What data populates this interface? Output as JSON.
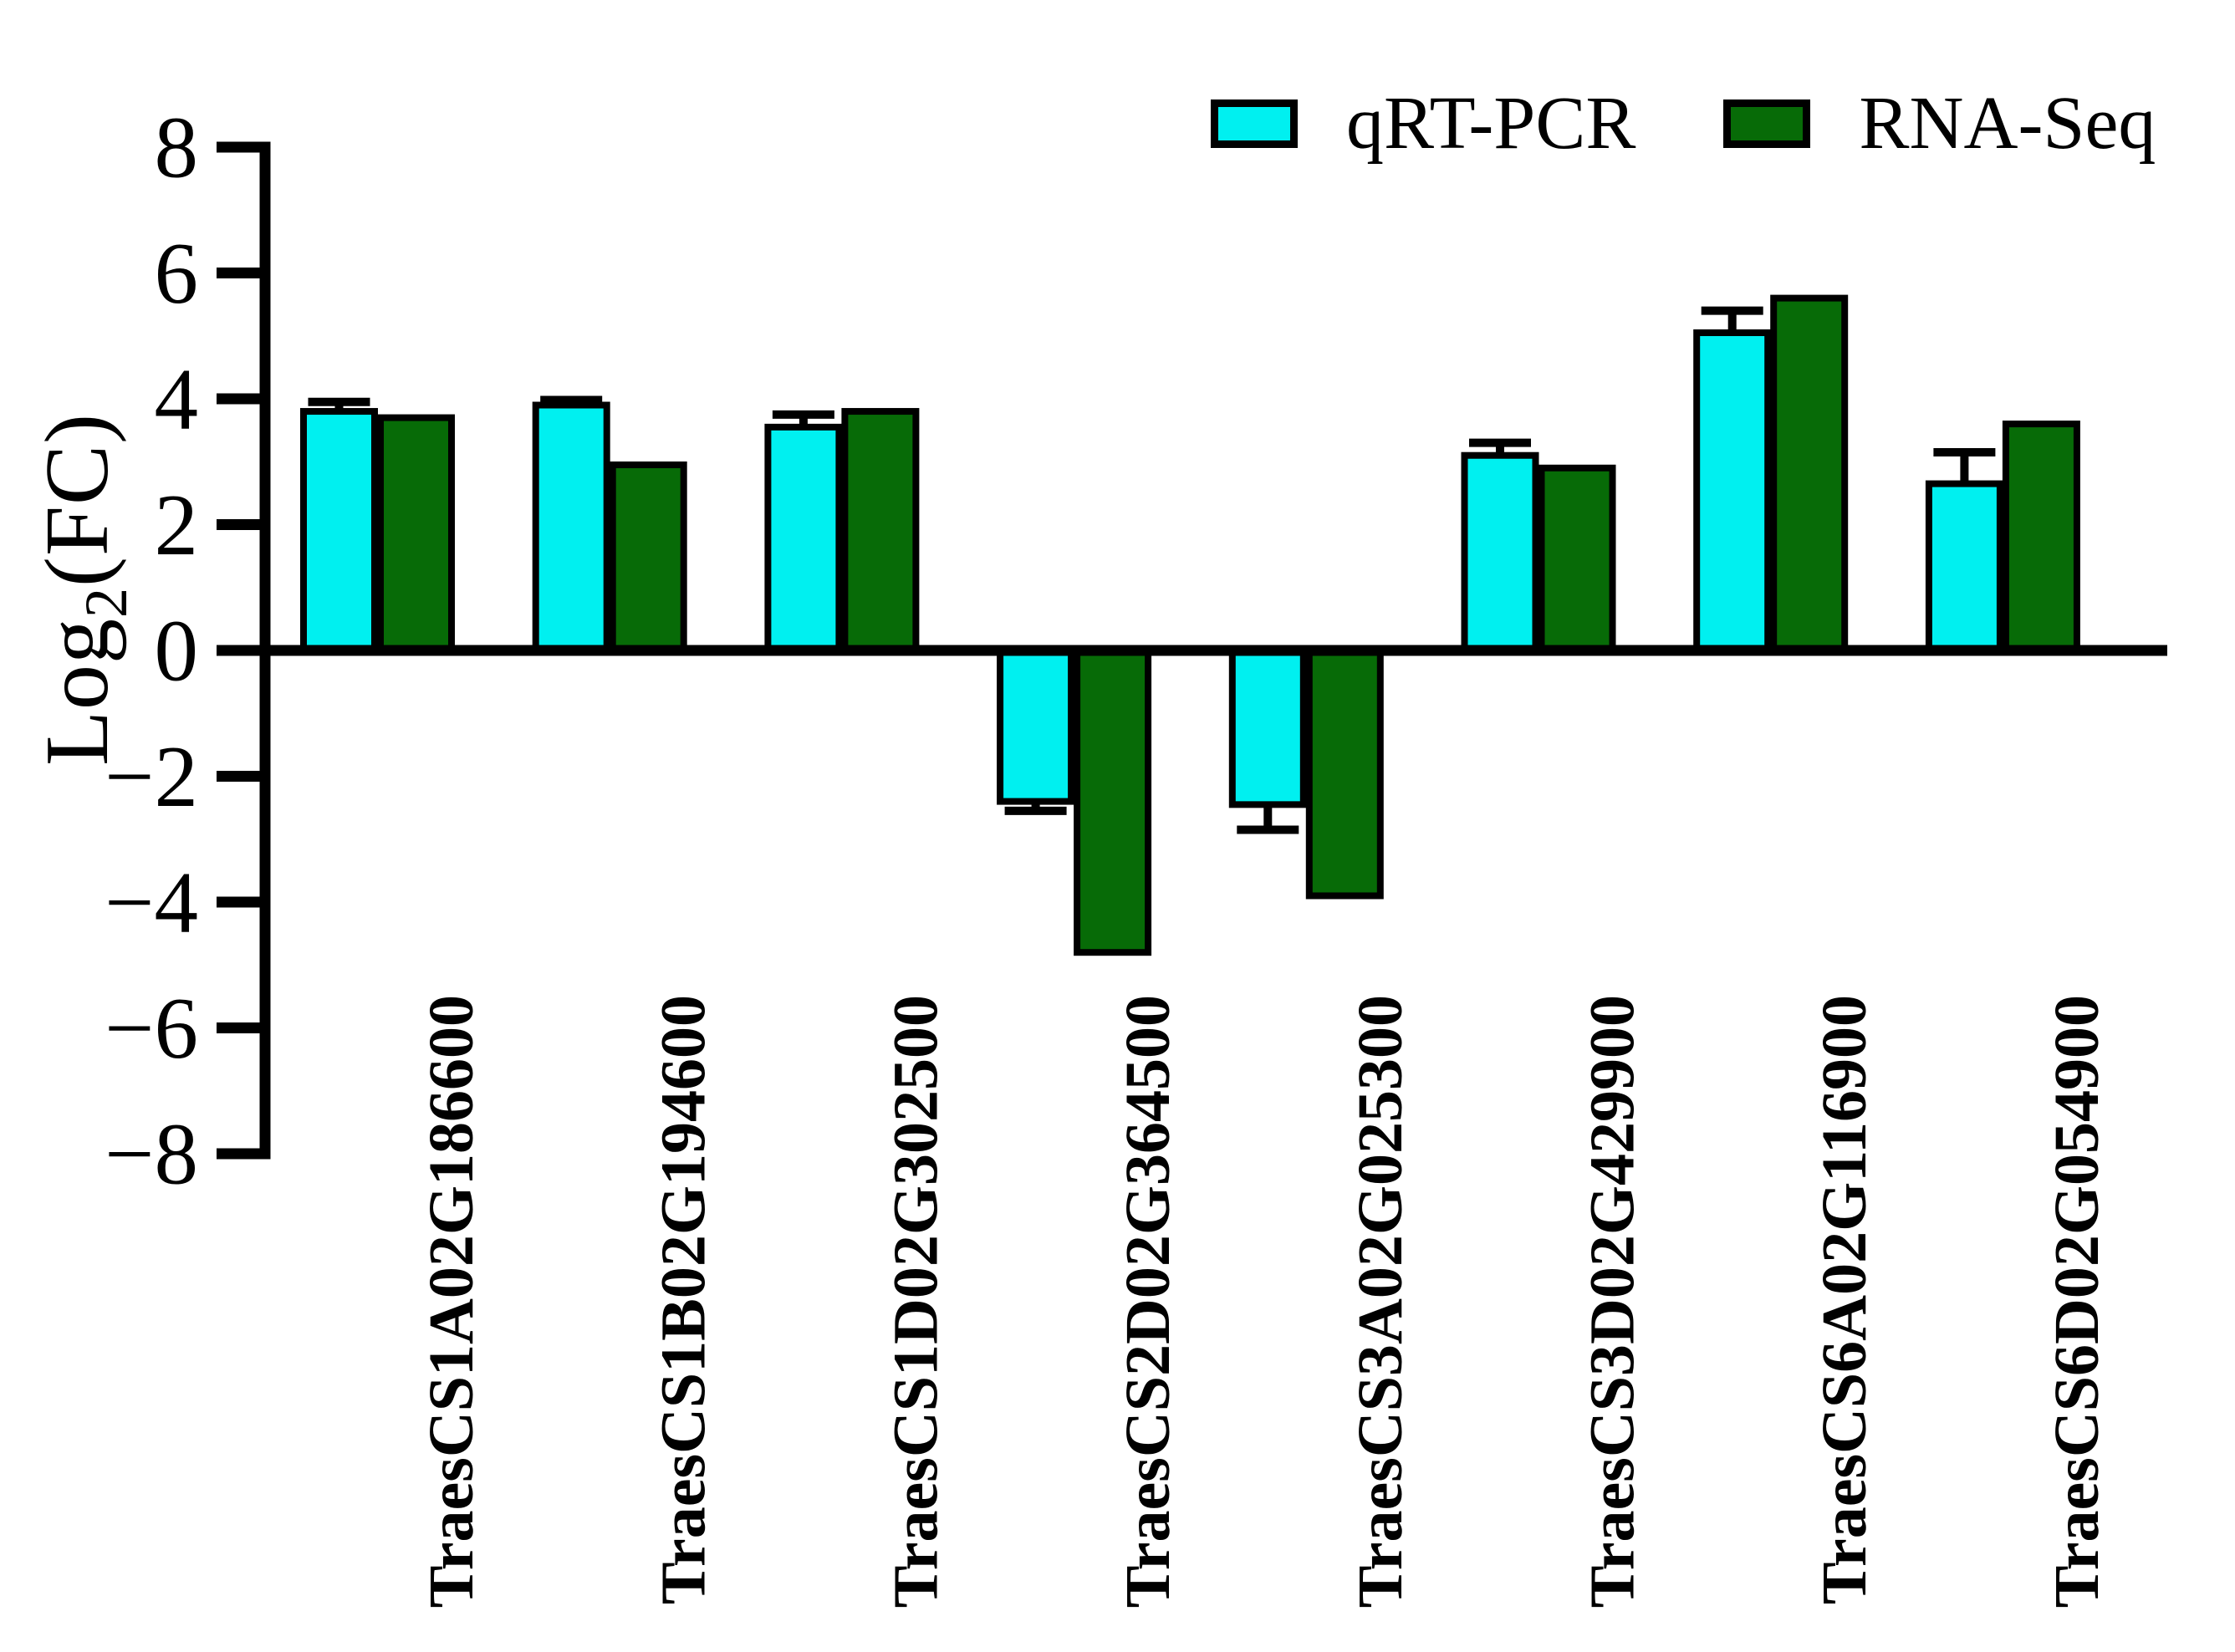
{
  "chart_data": {
    "type": "bar",
    "title": "",
    "ylabel": "Log2(FC)",
    "ylabel_parts": {
      "base": "Log",
      "sub": "2",
      "rest": "(FC)"
    },
    "categories": [
      "TraesCS1A02G186600",
      "TraesCS1B02G194600",
      "TraesCS1D02G302500",
      "TraesCS2D02G364500",
      "TraesCS3A02G025300",
      "TraesCS3D02G429900",
      "TraesCS6A02G116900",
      "TraesCS6D02G054900"
    ],
    "series": [
      {
        "name": "qRT-PCR",
        "color": "#00F0F0",
        "values": [
          3.8,
          3.9,
          3.55,
          -2.4,
          -2.45,
          3.1,
          5.05,
          2.65
        ],
        "errors": [
          0.15,
          0.08,
          0.2,
          0.15,
          0.4,
          0.2,
          0.35,
          0.5
        ]
      },
      {
        "name": "RNA-Seq",
        "color": "#076B07",
        "values": [
          3.7,
          2.95,
          3.8,
          -4.8,
          -3.9,
          2.9,
          5.6,
          3.6
        ],
        "errors": null
      }
    ],
    "ylim": [
      -8,
      8
    ],
    "yticks": [
      8,
      6,
      4,
      2,
      0,
      -2,
      -4,
      -6,
      -8
    ],
    "grid": false,
    "legend_position": "top-right",
    "bar_outline": "#000000",
    "axis_color": "#000000"
  }
}
